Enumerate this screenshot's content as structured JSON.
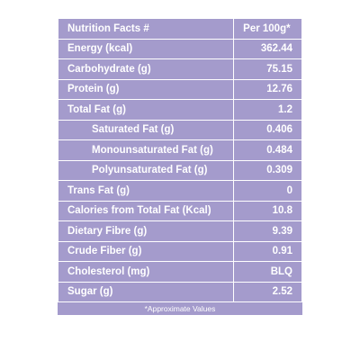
{
  "table": {
    "header": {
      "label": "Nutrition Facts #",
      "value": "Per 100g*"
    },
    "rows": [
      {
        "label": "Energy (kcal)",
        "value": "362.44"
      },
      {
        "label": "Carbohydrate (g)",
        "value": "75.15"
      },
      {
        "label": "Protein (g)",
        "value": "12.76"
      },
      {
        "label": "Total Fat (g)",
        "value": "1.2"
      },
      {
        "label": "Saturated Fat (g)",
        "value": "0.406"
      },
      {
        "label": "Monounsaturated Fat (g)",
        "value": "0.484"
      },
      {
        "label": "Polyunsaturated Fat (g)",
        "value": "0.309"
      },
      {
        "label": "Trans Fat (g)",
        "value": "0"
      },
      {
        "label": "Calories from Total Fat (Kcal)",
        "value": "10.8"
      },
      {
        "label": "Dietary Fibre (g)",
        "value": "9.39"
      },
      {
        "label": "Crude Fiber (g)",
        "value": "0.91"
      },
      {
        "label": "Cholesterol (mg)",
        "value": "BLQ"
      },
      {
        "label": "Sugar (g)",
        "value": "2.52"
      }
    ],
    "footnote": "*Approximate Values"
  },
  "colors": {
    "table_background": "#a49bcc",
    "text": "#ffffff",
    "border": "#ffffff"
  }
}
